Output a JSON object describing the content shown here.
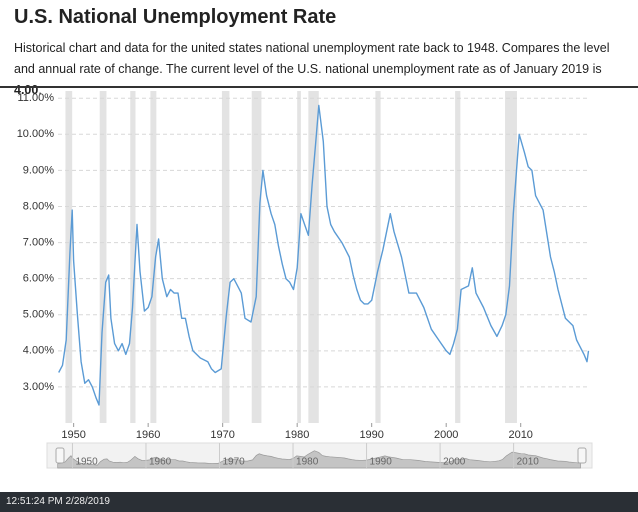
{
  "header": {
    "title": "U.S. National Unemployment Rate",
    "description": "Historical chart and data for the united states national unemployment rate back to 1948. Compares the level and annual rate of change. The current level of the U.S. national unemployment rate as of January 2019 is ",
    "current_value": "4.00",
    "description_end": "."
  },
  "chart_data": {
    "type": "line",
    "color": "#5b9bd5",
    "grid": true,
    "x": [
      1948.0,
      1948.5,
      1949.0,
      1949.5,
      1949.8,
      1950.0,
      1950.5,
      1951.0,
      1951.5,
      1952.0,
      1952.5,
      1953.0,
      1953.4,
      1953.8,
      1954.3,
      1954.7,
      1955.0,
      1955.5,
      1956.0,
      1956.5,
      1957.0,
      1957.5,
      1957.9,
      1958.5,
      1958.9,
      1959.5,
      1960.0,
      1960.5,
      1961.0,
      1961.4,
      1961.9,
      1962.5,
      1963.0,
      1963.5,
      1964.0,
      1964.5,
      1965.0,
      1965.5,
      1966.0,
      1967.0,
      1968.0,
      1968.5,
      1969.0,
      1969.8,
      1970.5,
      1971.0,
      1971.5,
      1972.0,
      1972.5,
      1973.0,
      1973.8,
      1974.5,
      1975.0,
      1975.4,
      1975.9,
      1976.5,
      1977.0,
      1977.5,
      1978.0,
      1978.5,
      1979.0,
      1979.5,
      1980.0,
      1980.5,
      1981.0,
      1981.5,
      1982.0,
      1982.5,
      1982.9,
      1983.5,
      1984.0,
      1984.5,
      1985.0,
      1986.0,
      1987.0,
      1987.5,
      1988.0,
      1988.5,
      1989.0,
      1989.5,
      1990.0,
      1990.8,
      1991.5,
      1992.5,
      1993.0,
      1994.0,
      1994.5,
      1995.0,
      1996.0,
      1997.0,
      1998.0,
      1999.0,
      2000.0,
      2000.5,
      2001.0,
      2001.5,
      2002.0,
      2003.0,
      2003.5,
      2004.0,
      2005.0,
      2006.0,
      2006.8,
      2007.5,
      2008.0,
      2008.5,
      2009.0,
      2009.8,
      2010.5,
      2011.0,
      2011.5,
      2012.0,
      2013.0,
      2014.0,
      2014.5,
      2015.0,
      2016.0,
      2017.0,
      2017.5,
      2018.0,
      2018.5,
      2018.9,
      2019.1
    ],
    "values": [
      3.4,
      3.6,
      4.3,
      6.7,
      7.9,
      6.5,
      5.0,
      3.7,
      3.1,
      3.2,
      3.0,
      2.7,
      2.5,
      4.5,
      5.9,
      6.1,
      4.9,
      4.2,
      4.0,
      4.2,
      3.9,
      4.2,
      5.2,
      7.5,
      6.2,
      5.1,
      5.2,
      5.5,
      6.6,
      7.1,
      6.0,
      5.5,
      5.7,
      5.6,
      5.6,
      4.9,
      4.9,
      4.4,
      4.0,
      3.8,
      3.7,
      3.5,
      3.4,
      3.5,
      5.0,
      5.9,
      6.0,
      5.8,
      5.6,
      4.9,
      4.8,
      5.5,
      8.1,
      9.0,
      8.3,
      7.8,
      7.5,
      6.9,
      6.4,
      6.0,
      5.9,
      5.7,
      6.3,
      7.8,
      7.5,
      7.2,
      8.6,
      9.8,
      10.8,
      9.8,
      8.0,
      7.5,
      7.3,
      7.0,
      6.6,
      6.1,
      5.7,
      5.4,
      5.3,
      5.3,
      5.4,
      6.2,
      6.8,
      7.8,
      7.3,
      6.6,
      6.1,
      5.6,
      5.6,
      5.2,
      4.6,
      4.3,
      4.0,
      3.9,
      4.2,
      4.6,
      5.7,
      5.8,
      6.3,
      5.6,
      5.2,
      4.7,
      4.4,
      4.7,
      5.0,
      5.8,
      7.8,
      10.0,
      9.5,
      9.1,
      9.0,
      8.3,
      7.9,
      6.6,
      6.2,
      5.7,
      4.9,
      4.7,
      4.3,
      4.1,
      3.9,
      3.7,
      4.0
    ],
    "recessions": [
      [
        1948.9,
        1949.8
      ],
      [
        1953.5,
        1954.4
      ],
      [
        1957.6,
        1958.3
      ],
      [
        1960.3,
        1961.1
      ],
      [
        1969.9,
        1970.9
      ],
      [
        1973.9,
        1975.2
      ],
      [
        1980.0,
        1980.5
      ],
      [
        1981.5,
        1982.9
      ],
      [
        1990.5,
        1991.2
      ],
      [
        2001.2,
        2001.9
      ],
      [
        2007.9,
        2009.5
      ]
    ],
    "recession_color": "#e3e3e3",
    "xlim": [
      1947.9,
      2019.3
    ],
    "xticks": [
      1950,
      1960,
      1970,
      1980,
      1990,
      2000,
      2010
    ],
    "ylim": [
      2,
      11.2
    ],
    "yticks": [
      {
        "value": 3,
        "label": "3.00%"
      },
      {
        "value": 4,
        "label": "4.00%"
      },
      {
        "value": 5,
        "label": "5.00%"
      },
      {
        "value": 6,
        "label": "6.00%"
      },
      {
        "value": 7,
        "label": "7.00%"
      },
      {
        "value": 8,
        "label": "8.00%"
      },
      {
        "value": 9,
        "label": "9.00%"
      },
      {
        "value": 10,
        "label": "10.00%"
      },
      {
        "value": 11,
        "label": "11.00%"
      }
    ]
  },
  "footer": {
    "timestamp": "12:51:24 PM 2/28/2019"
  }
}
